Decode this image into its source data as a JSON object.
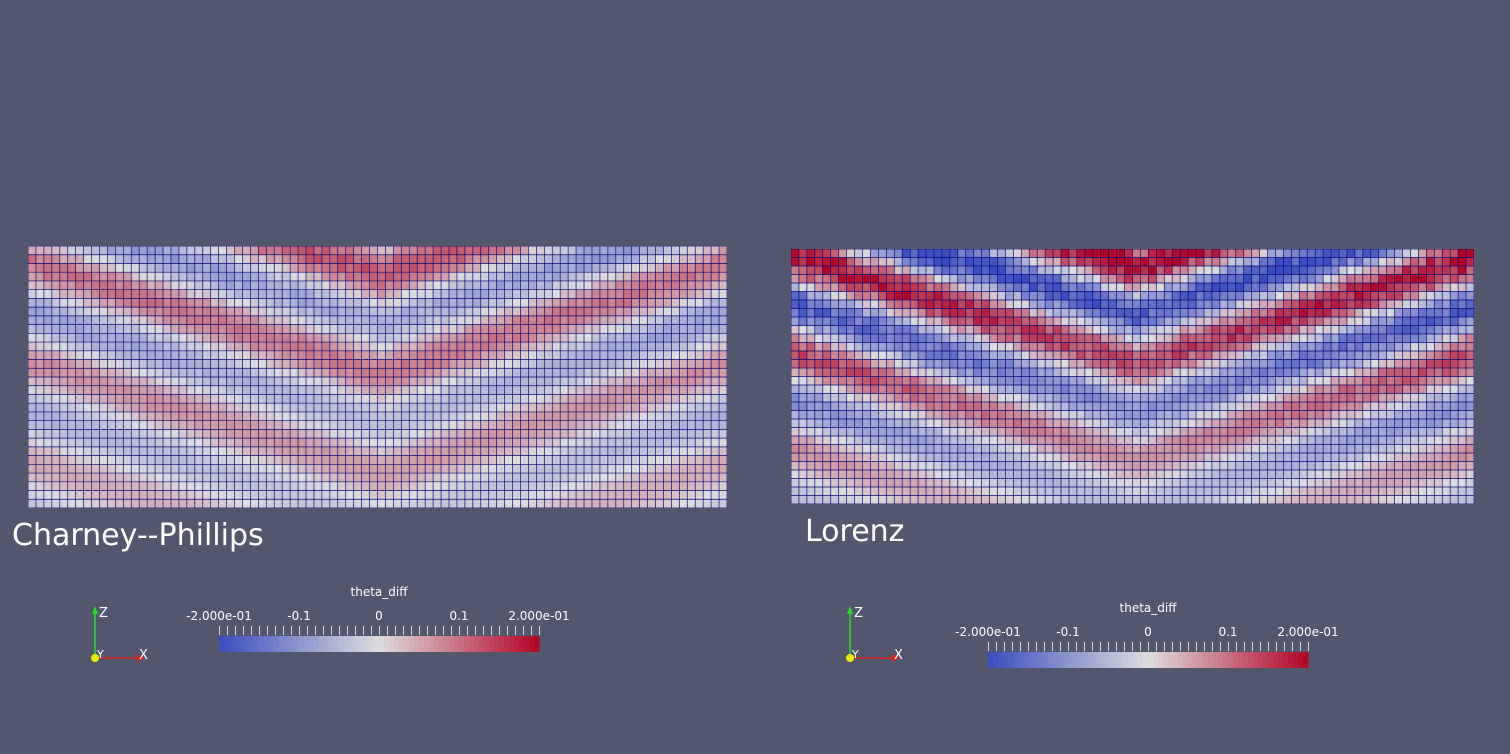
{
  "panels": [
    {
      "id": "left",
      "title": "Charney--Phillips",
      "field": "theta_diff",
      "colorbar": {
        "title": "theta_diff",
        "tick_labels": [
          "-2.000e-01",
          "-0.1",
          "0",
          "0.1",
          "2.000e-01"
        ],
        "tick_values": [
          -0.2,
          -0.1,
          0,
          0.1,
          0.2
        ],
        "range": [
          -0.2,
          0.2
        ],
        "colormap": "cool-to-warm"
      },
      "axes": {
        "z": "Z",
        "y": "Y",
        "x": "X"
      }
    },
    {
      "id": "right",
      "title": "Lorenz",
      "field": "theta_diff",
      "colorbar": {
        "title": "theta_diff",
        "tick_labels": [
          "-2.000e-01",
          "-0.1",
          "0",
          "0.1",
          "2.000e-01"
        ],
        "tick_values": [
          -0.2,
          -0.1,
          0,
          0.1,
          0.2
        ],
        "range": [
          -0.2,
          0.2
        ],
        "colormap": "cool-to-warm"
      },
      "axes": {
        "z": "Z",
        "y": "Y",
        "x": "X"
      }
    }
  ],
  "colors": {
    "background": "#52576e",
    "mesh_lines": "#0a0a78",
    "cmap_low": "#3b4cc0",
    "cmap_mid": "#dddddd",
    "cmap_high": "#b40426",
    "axis_z": "#22dd22",
    "axis_x": "#dd2222",
    "axis_y_origin": "#eeee00"
  }
}
